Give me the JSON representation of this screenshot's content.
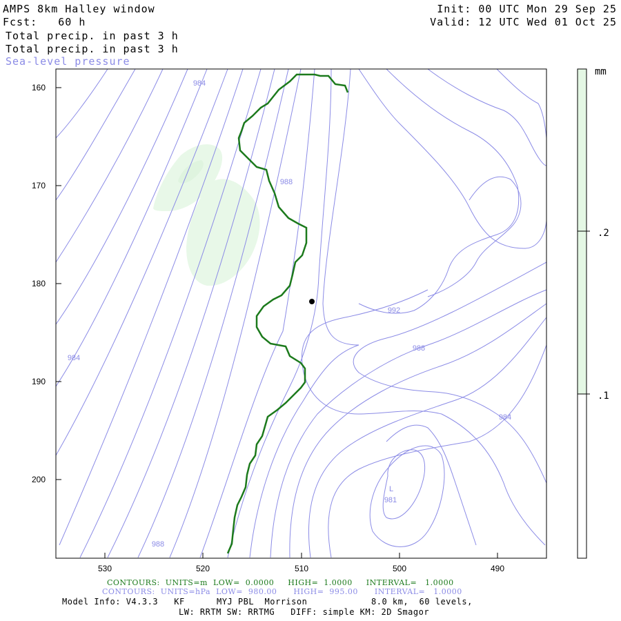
{
  "header": {
    "model_line": "AMPS 8km Halley window",
    "fcst_line": "Fcst:   60 h",
    "field1": "Total precip. in past 3 h",
    "field2": "Total precip. in past 3 h",
    "field3": "Sea-level pressure",
    "init_line": "Init: 00 UTC Mon 29 Sep 25",
    "valid_line": "Valid: 12 UTC Wed 01 Oct 25"
  },
  "map": {
    "y_ticks": [
      "160",
      "170",
      "180",
      "190",
      "200"
    ],
    "x_ticks": [
      "530",
      "520",
      "510",
      "500",
      "490"
    ],
    "pressure_labels": [
      {
        "text": "984"
      },
      {
        "text": "988"
      },
      {
        "text": "992"
      },
      {
        "text": "988"
      },
      {
        "text": "984"
      },
      {
        "text": "984"
      },
      {
        "text": "988"
      },
      {
        "text": "L"
      },
      {
        "text": "981"
      }
    ],
    "colors": {
      "pressure": "#8b8be6",
      "coastline": "#1c7a1c",
      "precip_fill": "#e4f7e4",
      "station": "#000000"
    }
  },
  "colorbar": {
    "unit": "mm",
    "labels": [
      ".2",
      ".1"
    ],
    "fill_color": "#e4f7e4"
  },
  "footer": {
    "line1": "CONTOURS:  UNITS=m  LOW=  0.0000     HIGH=  1.0000     INTERVAL=   1.0000",
    "line2": "CONTOURS:  UNITS=hPa  LOW=  980.00      HIGH=  995.00      INTERVAL=   1.0000",
    "line3": "Model Info: V4.3.3   KF      MYJ PBL  Morrison            8.0 km,  60 levels,",
    "line4": "LW: RRTM SW: RRTMG   DIFF: simple KM: 2D Smagor"
  }
}
